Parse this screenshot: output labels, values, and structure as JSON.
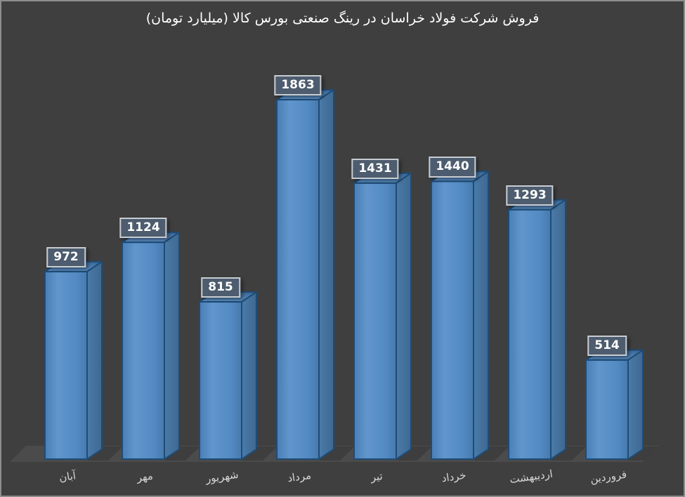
{
  "window": {
    "background": "#3F3F3F",
    "frame_border_color": "#8D8D8D"
  },
  "chart_data": {
    "type": "bar",
    "style": "3d-column",
    "title": "فروش شرکت فولاد خراسان در رینگ صنعتی بورس کالا (میلیارد تومان)",
    "categories_order": "left-to-right",
    "categories": [
      "آبان",
      "مهر",
      "شهریور",
      "مرداد",
      "تیر",
      "خرداد",
      "اردیبهشت",
      "فروردین"
    ],
    "values": [
      972,
      1124,
      815,
      1863,
      1431,
      1440,
      1293,
      514
    ],
    "data_labels_visible": true,
    "legend": "none",
    "value_axis_visible": false,
    "gridlines": false,
    "implied_value_max": 1863,
    "colors": {
      "bar_front": "#5389C3",
      "bar_side": "#44719D",
      "bar_top_back": "#3A6593",
      "bar_top_front": "#6095CC",
      "bar_stroke": "#1E4C77",
      "floor": "#4B4B4B",
      "shadow": "rgba(0,0,0,0.16)",
      "label_box_bg": "#4D5C6E",
      "label_box_border": "#C9CDD2",
      "label_text": "#FFFFFF",
      "category_text": "#D6D6D6",
      "title_text": "#FFFFFF"
    }
  }
}
